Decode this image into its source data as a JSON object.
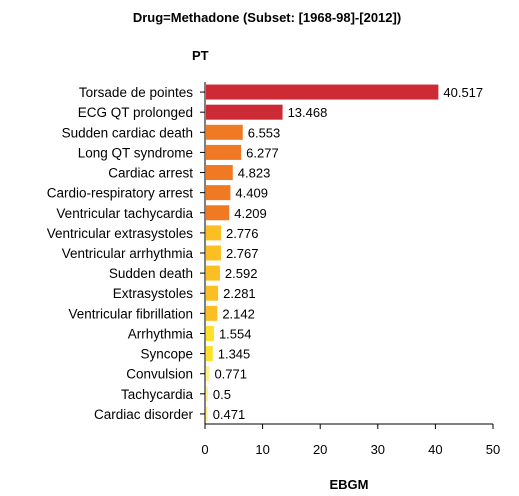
{
  "chart_data": {
    "type": "bar",
    "orientation": "horizontal",
    "title": "Drug=Methadone (Subset: [1968-98]-[2012])",
    "ylabel": "PT",
    "xlabel": "EBGM",
    "xlim": [
      0,
      50
    ],
    "xticks": [
      "0",
      "10",
      "20",
      "30",
      "40",
      "50"
    ],
    "grid": false,
    "categories": [
      "Torsade de pointes",
      "ECG QT prolonged",
      "Sudden cardiac death",
      "Long QT syndrome",
      "Cardiac arrest",
      "Cardio-respiratory arrest",
      "Ventricular tachycardia",
      "Ventricular extrasystoles",
      "Ventricular arrhythmia",
      "Sudden death",
      "Extrasystoles",
      "Ventricular fibrillation",
      "Arrhythmia",
      "Syncope",
      "Convulsion",
      "Tachycardia",
      "Cardiac disorder"
    ],
    "values": [
      40.517,
      13.468,
      6.553,
      6.277,
      4.823,
      4.409,
      4.209,
      2.776,
      2.767,
      2.592,
      2.281,
      2.142,
      1.554,
      1.345,
      0.771,
      0.5,
      0.471
    ],
    "value_labels": [
      "40.517",
      "13.468",
      "6.553",
      "6.277",
      "4.823",
      "4.409",
      "4.209",
      "2.776",
      "2.767",
      "2.592",
      "2.281",
      "2.142",
      "1.554",
      "1.345",
      "0.771",
      "0.5",
      "0.471"
    ],
    "bar_colors": [
      "#cc2a35",
      "#cc2a35",
      "#f07a23",
      "#f07a23",
      "#f07a23",
      "#f07a23",
      "#f07a23",
      "#fbbf24",
      "#fbbf24",
      "#fbbf24",
      "#fbbf24",
      "#fbbf24",
      "#fde02a",
      "#fde02a",
      "#fef08a",
      "#fef08a",
      "#fef08a"
    ]
  }
}
